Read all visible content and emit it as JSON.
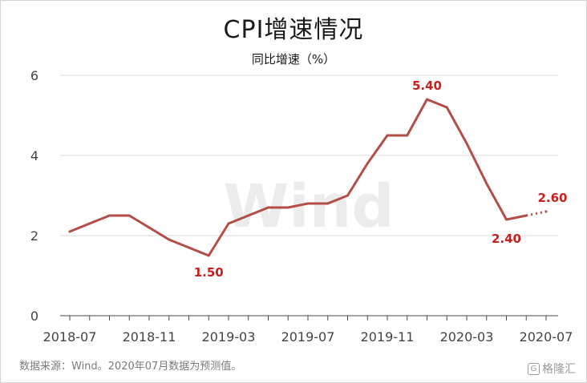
{
  "chart_data": {
    "type": "line",
    "title": "CPI增速情况",
    "ylabel": "同比增速（%）",
    "xlabel": "",
    "ylim": [
      0,
      6
    ],
    "yticks": [
      0,
      2,
      4,
      6
    ],
    "xticks": [
      "2018-07",
      "2018-11",
      "2019-03",
      "2019-07",
      "2019-11",
      "2020-03",
      "2020-07"
    ],
    "x": [
      "2018-07",
      "2018-08",
      "2018-09",
      "2018-10",
      "2018-11",
      "2018-12",
      "2019-01",
      "2019-02",
      "2019-03",
      "2019-04",
      "2019-05",
      "2019-06",
      "2019-07",
      "2019-08",
      "2019-09",
      "2019-10",
      "2019-11",
      "2019-12",
      "2020-01",
      "2020-02",
      "2020-03",
      "2020-04",
      "2020-05",
      "2020-06",
      "2020-07"
    ],
    "series": [
      {
        "values": [
          2.1,
          2.3,
          2.5,
          2.5,
          2.2,
          1.9,
          1.7,
          1.5,
          2.3,
          2.5,
          2.7,
          2.7,
          2.8,
          2.8,
          3.0,
          3.8,
          4.5,
          4.5,
          5.4,
          5.2,
          4.3,
          3.3,
          2.4,
          2.5,
          2.6
        ],
        "forecast_from": "2020-06",
        "color": "#b24e47"
      }
    ],
    "annotations": [
      {
        "x": "2019-02",
        "y": 1.5,
        "text": "1.50"
      },
      {
        "x": "2020-01",
        "y": 5.4,
        "text": "5.40"
      },
      {
        "x": "2020-05",
        "y": 2.4,
        "text": "2.40"
      },
      {
        "x": "2020-07",
        "y": 2.6,
        "text": "2.60"
      }
    ],
    "grid": true,
    "watermark": "Wind"
  },
  "source_note": "数据来源：Wind。2020年07月数据为预测值。",
  "brand": {
    "mark": "G",
    "name": "格隆汇"
  }
}
